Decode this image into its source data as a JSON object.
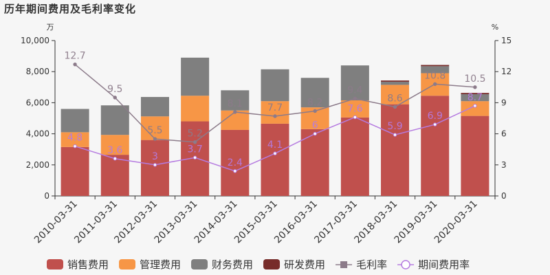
{
  "title": "历年期间费用及毛利率变化",
  "chart_data": {
    "type": "bar",
    "stacked": true,
    "categories": [
      "2010-03-31",
      "2011-03-31",
      "2012-03-31",
      "2013-03-31",
      "2014-03-31",
      "2015-03-31",
      "2016-03-31",
      "2017-03-31",
      "2018-03-31",
      "2019-03-31",
      "2020-03-31"
    ],
    "series": [
      {
        "name": "销售费用",
        "type": "bar",
        "axis": "left",
        "color": "#c0504d",
        "values": [
          3150,
          2650,
          3600,
          4800,
          4250,
          4650,
          4300,
          5050,
          5900,
          6450,
          5150
        ]
      },
      {
        "name": "管理费用",
        "type": "bar",
        "axis": "left",
        "color": "#f79646",
        "values": [
          950,
          1280,
          1520,
          1650,
          1250,
          1450,
          1400,
          1100,
          1250,
          1450,
          950
        ]
      },
      {
        "name": "财务费用",
        "type": "bar",
        "axis": "left",
        "color": "#7f7f7f",
        "values": [
          1500,
          1900,
          1250,
          2450,
          1300,
          2050,
          1900,
          2250,
          200,
          450,
          450
        ]
      },
      {
        "name": "研发费用",
        "type": "bar",
        "axis": "left",
        "color": "#772c2a",
        "values": [
          0,
          0,
          0,
          0,
          0,
          0,
          0,
          0,
          80,
          80,
          80
        ]
      },
      {
        "name": "毛利率",
        "type": "line",
        "axis": "right",
        "color": "#8c7b8a",
        "values": [
          12.7,
          9.5,
          5.5,
          5.2,
          8.1,
          7.7,
          8.2,
          9.4,
          8.6,
          10.8,
          10.5
        ],
        "labels": [
          "12.7",
          "9.5",
          "5.5",
          "5.2",
          "8.1",
          "7.7",
          "8.2",
          "9.4",
          "8.6",
          "10.8",
          "10.5"
        ]
      },
      {
        "name": "期间费用率",
        "type": "line",
        "axis": "right",
        "color": "#b57be0",
        "values": [
          4.8,
          3.6,
          3,
          3.7,
          2.4,
          4.1,
          6,
          7.6,
          5.9,
          6.9,
          8.7
        ],
        "labels": [
          "4.8",
          "3.6",
          "3",
          "3.7",
          "2.4",
          "4.1",
          "6",
          "7.6",
          "5.9",
          "6.9",
          "8.7"
        ]
      }
    ],
    "left_axis": {
      "unit": "万",
      "min": 0,
      "max": 10000,
      "ticks": [
        0,
        2000,
        4000,
        6000,
        8000,
        10000
      ],
      "tick_labels": [
        "0",
        "2,000",
        "4,000",
        "6,000",
        "8,000",
        "10,000"
      ]
    },
    "right_axis": {
      "unit": "%",
      "min": 0,
      "max": 15,
      "ticks": [
        0,
        3,
        6,
        9,
        12,
        15
      ],
      "tick_labels": [
        "0",
        "3",
        "6",
        "9",
        "12",
        "15"
      ]
    },
    "legend_position": "bottom",
    "grid": false
  }
}
